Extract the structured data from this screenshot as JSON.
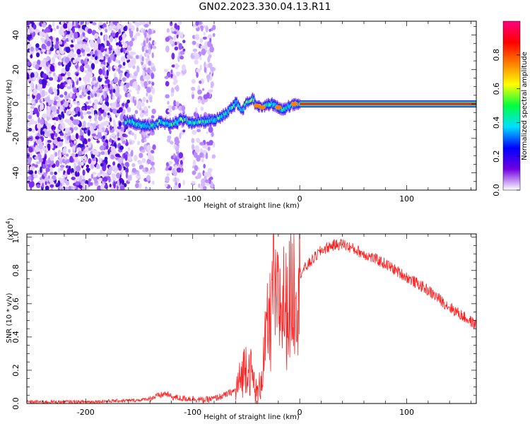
{
  "title": "GN02.2023.330.04.13.R11",
  "chart_data": [
    {
      "type": "heatmap",
      "name": "spectrogram",
      "xlabel": "Height of straight line (km)",
      "ylabel": "Frequency (Hz)",
      "xlim": [
        -255,
        165
      ],
      "ylim": [
        -50,
        48
      ],
      "xticks": [
        -200,
        -100,
        0,
        100
      ],
      "yticks": [
        -40,
        -20,
        0,
        20,
        40
      ],
      "xtick_labels": [
        "-200",
        "-100",
        "0",
        "100"
      ],
      "ytick_labels": [
        "-40",
        "-20",
        "0",
        "20",
        "40"
      ],
      "colorbar": {
        "label": "Normalized spectral amplitude",
        "range": [
          0,
          1
        ],
        "ticks": [
          0.0,
          0.2,
          0.4,
          0.6,
          0.8
        ],
        "tick_labels": [
          "0.0",
          "0.2",
          "0.4",
          "0.6",
          "0.8"
        ],
        "colors": [
          "#ffffff",
          "#7000e0",
          "#0000ff",
          "#00e0ff",
          "#00ff40",
          "#ffff00",
          "#ff8000",
          "#ff0000",
          "#ff0080"
        ]
      },
      "ridge": {
        "x": [
          -160,
          -150,
          -140,
          -130,
          -120,
          -110,
          -100,
          -90,
          -80,
          -70,
          -65,
          -60,
          -55,
          -50,
          -45,
          -40,
          -35,
          -30,
          -25,
          -20,
          -15,
          -10,
          -5,
          0,
          165
        ],
        "freq": [
          -10,
          -12,
          -13,
          -10,
          -12,
          -9,
          -11,
          -10,
          -9,
          -6,
          -3,
          1,
          -4,
          1,
          3,
          -1,
          -2,
          -1,
          0,
          -2,
          -3,
          -1,
          0,
          0,
          0
        ]
      }
    },
    {
      "type": "line",
      "name": "snr",
      "xlabel": "Height of straight line (km)",
      "ylabel": "SNR (10 * v/v)",
      "scale_label": "(x10",
      "scale_exponent": "4",
      "scale_suffix": ")",
      "xlim": [
        -255,
        165
      ],
      "ylim": [
        0,
        1.02
      ],
      "xticks": [
        -200,
        -100,
        0,
        100
      ],
      "yticks": [
        0.0,
        0.2,
        0.4,
        0.6,
        0.8,
        1.0
      ],
      "xtick_labels": [
        "-200",
        "-100",
        "0",
        "100"
      ],
      "ytick_labels": [
        "0.0",
        "0.2",
        "0.4",
        "0.6",
        "0.8",
        "1.0"
      ],
      "color": "#ff2020",
      "series": [
        {
          "name": "SNR",
          "x": [
            -255,
            -200,
            -150,
            -140,
            -130,
            -125,
            -120,
            -110,
            -100,
            -90,
            -80,
            -70,
            -60,
            -55,
            -50,
            -45,
            -42,
            -40,
            -38,
            -35,
            -32,
            -30,
            -27,
            -25,
            -22,
            -20,
            -17,
            -15,
            -12,
            -10,
            -5,
            0,
            10,
            20,
            30,
            40,
            50,
            60,
            80,
            100,
            120,
            140,
            165
          ],
          "y": [
            0.01,
            0.01,
            0.02,
            0.03,
            0.05,
            0.06,
            0.04,
            0.03,
            0.03,
            0.02,
            0.03,
            0.05,
            0.08,
            0.15,
            0.25,
            0.18,
            0.1,
            0.05,
            0.08,
            0.2,
            0.35,
            0.45,
            0.5,
            0.55,
            0.58,
            0.6,
            0.58,
            0.62,
            0.55,
            0.62,
            0.7,
            0.78,
            0.85,
            0.92,
            0.95,
            0.96,
            0.93,
            0.9,
            0.84,
            0.76,
            0.68,
            0.58,
            0.47
          ]
        }
      ]
    }
  ]
}
